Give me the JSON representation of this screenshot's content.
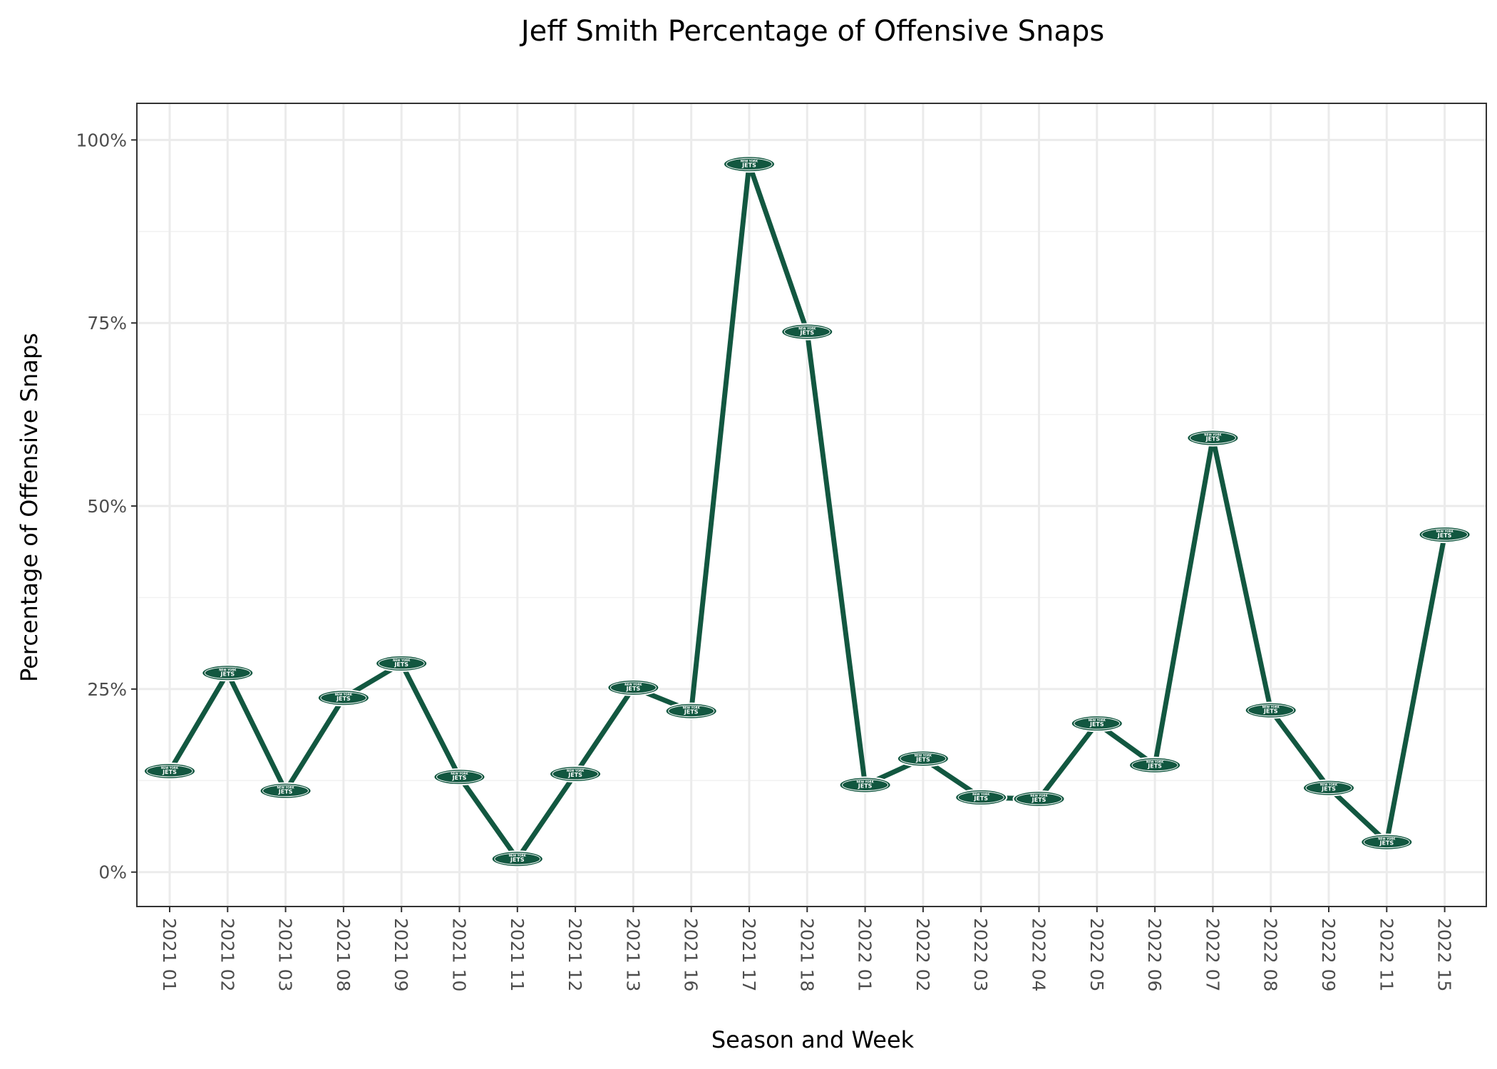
{
  "chart_data": {
    "type": "line",
    "title": "Jeff Smith Percentage of Offensive Snaps",
    "xlabel": "Season and Week",
    "ylabel": "Percentage of Offensive Snaps",
    "ylim": [
      -0.047,
      1.05
    ],
    "y_ticks": [
      0,
      0.25,
      0.5,
      0.75,
      1.0
    ],
    "y_tick_labels": [
      "0%",
      "25%",
      "50%",
      "75%",
      "100%"
    ],
    "grid": true,
    "categories": [
      "2021 01",
      "2021 02",
      "2021 03",
      "2021 08",
      "2021 09",
      "2021 10",
      "2021 11",
      "2021 12",
      "2021 13",
      "2021 16",
      "2021 17",
      "2021 18",
      "2022 01",
      "2022 02",
      "2022 03",
      "2022 04",
      "2022 05",
      "2022 06",
      "2022 07",
      "2022 08",
      "2022 09",
      "2022 11",
      "2022 15"
    ],
    "series": [
      {
        "values": [
          0.138,
          0.272,
          0.111,
          0.238,
          0.285,
          0.13,
          0.018,
          0.134,
          0.252,
          0.22,
          0.967,
          0.738,
          0.119,
          0.155,
          0.102,
          0.1,
          0.203,
          0.146,
          0.593,
          0.221,
          0.115,
          0.041,
          0.461
        ],
        "color": "#125740",
        "marker": "team-logo-icon",
        "marker_text": [
          "NEW YORK",
          "JETS"
        ]
      }
    ]
  }
}
